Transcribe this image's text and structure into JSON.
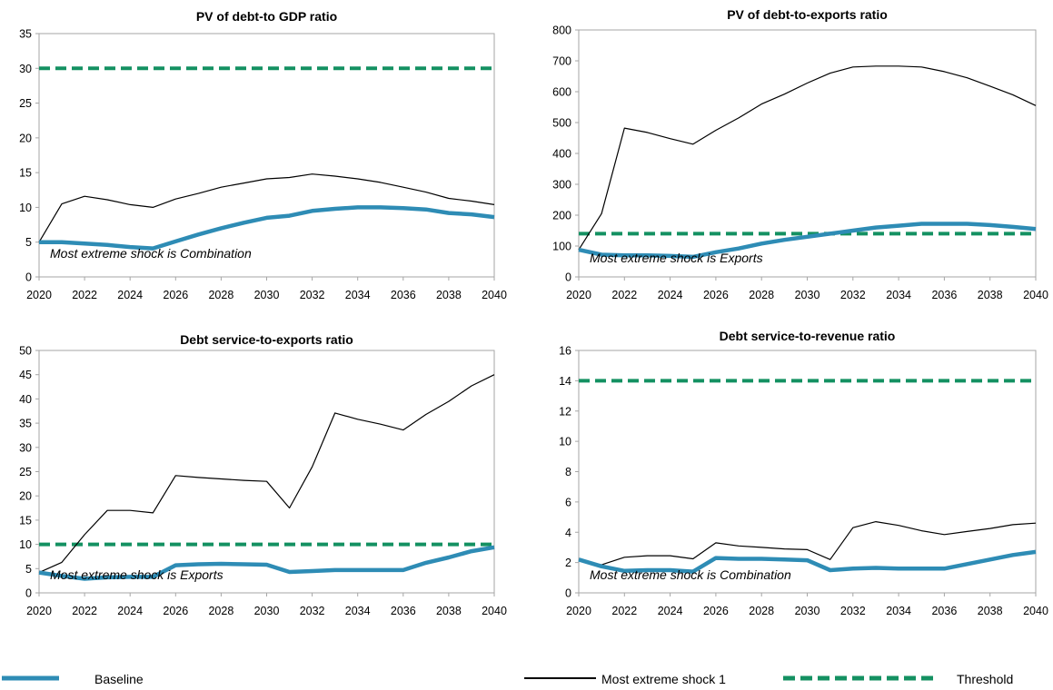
{
  "legend": {
    "baseline": "Baseline",
    "shock": "Most extreme shock 1",
    "threshold": "Threshold"
  },
  "colors": {
    "baseline": "#2E8CB5",
    "shock": "#000000",
    "threshold": "#149162",
    "axis": "#A6A6A6"
  },
  "chart_data": [
    {
      "type": "line",
      "title": "PV of debt-to GDP ratio",
      "annotation": "Most extreme shock is Combination",
      "x": [
        2020,
        2021,
        2022,
        2023,
        2024,
        2025,
        2026,
        2027,
        2028,
        2029,
        2030,
        2031,
        2032,
        2033,
        2034,
        2035,
        2036,
        2037,
        2038,
        2039,
        2040
      ],
      "xticks": [
        "2020",
        "2022",
        "2024",
        "2026",
        "2028",
        "2030",
        "2032",
        "2034",
        "2036",
        "2038",
        "2040"
      ],
      "ylim": [
        0,
        35
      ],
      "yticks": [
        "0",
        "5",
        "10",
        "15",
        "20",
        "25",
        "30",
        "35"
      ],
      "series": [
        {
          "name": "Baseline",
          "values": [
            5.0,
            5.0,
            4.8,
            4.6,
            4.3,
            4.1,
            5.1,
            6.1,
            7.0,
            7.8,
            8.5,
            8.8,
            9.5,
            9.8,
            10.0,
            10.0,
            9.9,
            9.7,
            9.2,
            9.0,
            8.6
          ]
        },
        {
          "name": "Most extreme shock 1",
          "values": [
            5.0,
            10.5,
            11.6,
            11.1,
            10.4,
            10.0,
            11.2,
            12.0,
            12.9,
            13.5,
            14.1,
            14.3,
            14.8,
            14.5,
            14.1,
            13.6,
            12.9,
            12.2,
            11.3,
            10.9,
            10.4
          ]
        },
        {
          "name": "Threshold",
          "values": [
            30,
            30,
            30,
            30,
            30,
            30,
            30,
            30,
            30,
            30,
            30,
            30,
            30,
            30,
            30,
            30,
            30,
            30,
            30,
            30,
            30
          ]
        }
      ]
    },
    {
      "type": "line",
      "title": "PV of debt-to-exports  ratio",
      "annotation": "Most extreme  shock  is Exports",
      "x": [
        2020,
        2021,
        2022,
        2023,
        2024,
        2025,
        2026,
        2027,
        2028,
        2029,
        2030,
        2031,
        2032,
        2033,
        2034,
        2035,
        2036,
        2037,
        2038,
        2039,
        2040
      ],
      "xticks": [
        "2020",
        "2022",
        "2024",
        "2026",
        "2028",
        "2030",
        "2032",
        "2034",
        "2036",
        "2038",
        "2040"
      ],
      "ylim": [
        0,
        800
      ],
      "yticks": [
        "0",
        "100",
        "200",
        "300",
        "400",
        "500",
        "600",
        "700",
        "800"
      ],
      "series": [
        {
          "name": "Baseline",
          "values": [
            88,
            72,
            70,
            70,
            68,
            65,
            80,
            92,
            108,
            120,
            130,
            140,
            150,
            160,
            166,
            172,
            172,
            172,
            168,
            162,
            155
          ]
        },
        {
          "name": "Most extreme shock 1",
          "values": [
            88,
            205,
            482,
            468,
            448,
            430,
            475,
            515,
            560,
            592,
            628,
            660,
            680,
            683,
            683,
            680,
            665,
            645,
            618,
            590,
            555
          ]
        },
        {
          "name": "Threshold",
          "values": [
            140,
            140,
            140,
            140,
            140,
            140,
            140,
            140,
            140,
            140,
            140,
            140,
            140,
            140,
            140,
            140,
            140,
            140,
            140,
            140,
            140
          ]
        }
      ]
    },
    {
      "type": "line",
      "title": "Debt service-to-exports  ratio",
      "annotation": "Most extreme  shock  is Exports",
      "x": [
        2020,
        2021,
        2022,
        2023,
        2024,
        2025,
        2026,
        2027,
        2028,
        2029,
        2030,
        2031,
        2032,
        2033,
        2034,
        2035,
        2036,
        2037,
        2038,
        2039,
        2040
      ],
      "xticks": [
        "2020",
        "2022",
        "2024",
        "2026",
        "2028",
        "2030",
        "2032",
        "2034",
        "2036",
        "2038",
        "2040"
      ],
      "ylim": [
        0,
        50
      ],
      "yticks": [
        "0",
        "5",
        "10",
        "15",
        "20",
        "25",
        "30",
        "35",
        "40",
        "45",
        "50"
      ],
      "series": [
        {
          "name": "Baseline",
          "values": [
            4.2,
            3.5,
            2.9,
            3.2,
            3.3,
            3.3,
            5.7,
            5.9,
            6.0,
            5.9,
            5.8,
            4.3,
            4.5,
            4.7,
            4.7,
            4.7,
            4.7,
            6.2,
            7.3,
            8.6,
            9.4
          ]
        },
        {
          "name": "Most extreme shock 1",
          "values": [
            4.2,
            6.3,
            12.0,
            17.0,
            17.0,
            16.5,
            24.2,
            23.8,
            23.5,
            23.2,
            23.0,
            17.5,
            26.0,
            37.1,
            35.8,
            34.8,
            33.6,
            36.8,
            39.5,
            42.7,
            45.0
          ]
        },
        {
          "name": "Threshold",
          "values": [
            10,
            10,
            10,
            10,
            10,
            10,
            10,
            10,
            10,
            10,
            10,
            10,
            10,
            10,
            10,
            10,
            10,
            10,
            10,
            10,
            10
          ]
        }
      ]
    },
    {
      "type": "line",
      "title": "Debt service-to-revenue  ratio",
      "annotation": "Most extreme  shock  is Combination",
      "x": [
        2020,
        2021,
        2022,
        2023,
        2024,
        2025,
        2026,
        2027,
        2028,
        2029,
        2030,
        2031,
        2032,
        2033,
        2034,
        2035,
        2036,
        2037,
        2038,
        2039,
        2040
      ],
      "xticks": [
        "2020",
        "2022",
        "2024",
        "2026",
        "2028",
        "2030",
        "2032",
        "2034",
        "2036",
        "2038",
        "2040"
      ],
      "ylim": [
        0,
        16
      ],
      "yticks": [
        "0",
        "2",
        "4",
        "6",
        "8",
        "10",
        "12",
        "14",
        "16"
      ],
      "series": [
        {
          "name": "Baseline",
          "values": [
            2.2,
            1.75,
            1.45,
            1.5,
            1.5,
            1.4,
            2.3,
            2.25,
            2.25,
            2.2,
            2.15,
            1.5,
            1.6,
            1.65,
            1.6,
            1.6,
            1.6,
            1.9,
            2.2,
            2.5,
            2.7
          ]
        },
        {
          "name": "Most extreme shock 1",
          "values": [
            2.2,
            1.85,
            2.35,
            2.45,
            2.45,
            2.25,
            3.3,
            3.1,
            3.0,
            2.9,
            2.85,
            2.2,
            4.3,
            4.7,
            4.45,
            4.1,
            3.85,
            4.05,
            4.25,
            4.5,
            4.6
          ]
        },
        {
          "name": "Threshold",
          "values": [
            14,
            14,
            14,
            14,
            14,
            14,
            14,
            14,
            14,
            14,
            14,
            14,
            14,
            14,
            14,
            14,
            14,
            14,
            14,
            14,
            14
          ]
        }
      ]
    }
  ]
}
